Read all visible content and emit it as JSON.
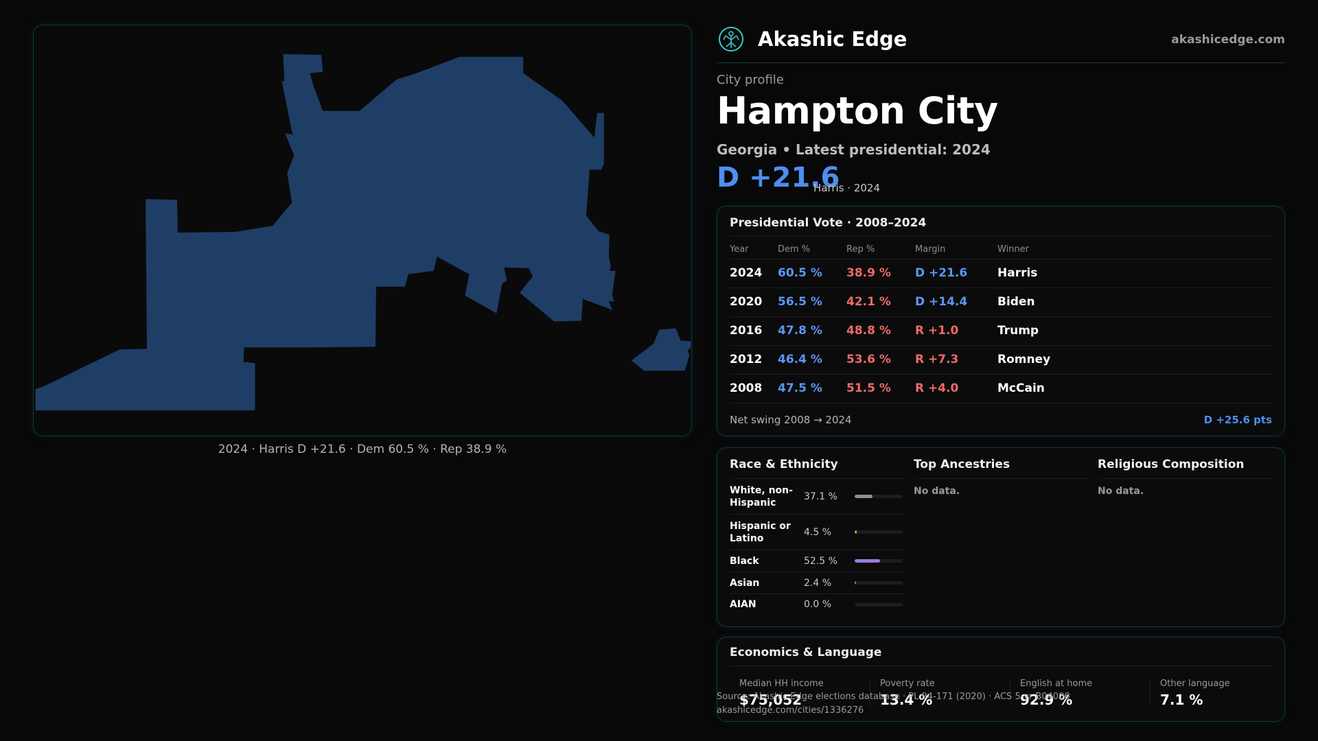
{
  "map": {
    "shape_color": "#1f3e66",
    "caption": "2024 · Harris D +21.6 · Dem 60.5 % · Rep 38.9 %"
  },
  "brand": {
    "logo_icon": "tree-of-life-icon",
    "name": "Akashic Edge",
    "url": "akashicedge.com"
  },
  "profile": {
    "eyebrow": "City profile",
    "title": "Hampton City",
    "subtitle": "Georgia • Latest presidential: 2024",
    "margin": "D +21.6",
    "margin_sub": "Harris · 2024"
  },
  "vote": {
    "title": "Presidential Vote · 2008–2024",
    "columns": [
      "Year",
      "Dem %",
      "Rep %",
      "Margin",
      "Winner"
    ],
    "rows": [
      {
        "year": "2024",
        "dem": "60.5 %",
        "rep": "38.9 %",
        "margin": "D +21.6",
        "winner": "Harris"
      },
      {
        "year": "2020",
        "dem": "56.5 %",
        "rep": "42.1 %",
        "margin": "D +14.4",
        "winner": "Biden"
      },
      {
        "year": "2016",
        "dem": "47.8 %",
        "rep": "48.8 %",
        "margin": "R +1.0",
        "winner": "Trump"
      },
      {
        "year": "2012",
        "dem": "46.4 %",
        "rep": "53.6 %",
        "margin": "R +7.3",
        "winner": "Romney"
      },
      {
        "year": "2008",
        "dem": "47.5 %",
        "rep": "51.5 %",
        "margin": "R +4.0",
        "winner": "McCain"
      }
    ],
    "swing_label": "Net swing 2008 → 2024",
    "swing_value": "D +25.6 pts"
  },
  "race": {
    "title": "Race & Ethnicity",
    "rows": [
      {
        "name": "White, non-Hispanic",
        "pct": "37.1 %",
        "value": 37.1,
        "color": "#8a8f9a"
      },
      {
        "name": "Hispanic or Latino",
        "pct": "4.5 %",
        "value": 4.5,
        "color": "#e0912e"
      },
      {
        "name": "Black",
        "pct": "52.5 %",
        "value": 52.5,
        "color": "#9b7be0"
      },
      {
        "name": "Asian",
        "pct": "2.4 %",
        "value": 2.4,
        "color": "#3fae78"
      },
      {
        "name": "AIAN",
        "pct": "0.0 %",
        "value": 0.0,
        "color": "#6a6a6a"
      }
    ]
  },
  "ancestries": {
    "title": "Top Ancestries",
    "empty": "No data."
  },
  "religion": {
    "title": "Religious Composition",
    "empty": "No data."
  },
  "economics": {
    "title": "Economics & Language",
    "items": [
      {
        "label": "Median HH income",
        "value": "$75,052"
      },
      {
        "label": "Poverty rate",
        "value": "13.4 %"
      },
      {
        "label": "English at home",
        "value": "92.9 %"
      },
      {
        "label": "Other language",
        "value": "7.1 %"
      }
    ]
  },
  "source": {
    "line1": "Source: Akashic Edge elections database · PL 94-171 (2020) · ACS 5-yr B04006",
    "line2": "akashicedge.com/cities/1336276"
  }
}
